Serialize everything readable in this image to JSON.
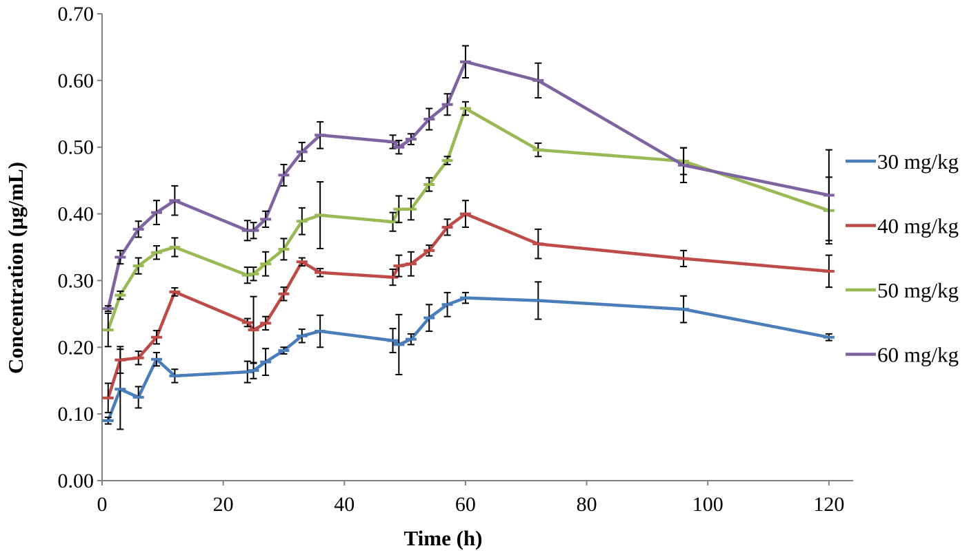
{
  "chart_data": {
    "type": "line",
    "title": "",
    "xlabel": "Time (h)",
    "ylabel": "Concentration (µg/mL)",
    "xlim": [
      0,
      124
    ],
    "ylim": [
      0,
      0.7
    ],
    "xticks": [
      0,
      20,
      40,
      60,
      80,
      100,
      120
    ],
    "yticks": [
      "0.00",
      "0.10",
      "0.20",
      "0.30",
      "0.40",
      "0.50",
      "0.60",
      "0.70"
    ],
    "grid": false,
    "legend_position": "right",
    "x": [
      1,
      3,
      6,
      9,
      12,
      24,
      25,
      27,
      30,
      33,
      36,
      48,
      49,
      51,
      54,
      57,
      60,
      72,
      96,
      120
    ],
    "series": [
      {
        "name": "30 mg/kg",
        "color": "#4a7ebb",
        "values": [
          0.09,
          0.137,
          0.125,
          0.182,
          0.157,
          0.163,
          0.165,
          0.178,
          0.195,
          0.217,
          0.224,
          0.21,
          0.204,
          0.212,
          0.244,
          0.264,
          0.274,
          0.27,
          0.257,
          0.215
        ],
        "errors": [
          0.005,
          0.06,
          0.016,
          0.01,
          0.01,
          0.016,
          0.012,
          0.02,
          0.005,
          0.01,
          0.024,
          0.018,
          0.045,
          0.008,
          0.02,
          0.018,
          0.008,
          0.028,
          0.02,
          0.005
        ]
      },
      {
        "name": "40 mg/kg",
        "color": "#be4b48",
        "values": [
          0.124,
          0.181,
          0.184,
          0.215,
          0.283,
          0.237,
          0.226,
          0.236,
          0.28,
          0.328,
          0.312,
          0.305,
          0.322,
          0.325,
          0.345,
          0.38,
          0.4,
          0.355,
          0.333,
          0.314
        ],
        "errors": [
          0.022,
          0.02,
          0.01,
          0.01,
          0.006,
          0.006,
          0.05,
          0.01,
          0.01,
          0.006,
          0.006,
          0.012,
          0.016,
          0.018,
          0.008,
          0.012,
          0.02,
          0.022,
          0.012,
          0.024
        ]
      },
      {
        "name": "50 mg/kg",
        "color": "#98b954",
        "values": [
          0.226,
          0.278,
          0.322,
          0.342,
          0.35,
          0.308,
          0.31,
          0.325,
          0.347,
          0.389,
          0.398,
          0.388,
          0.407,
          0.407,
          0.444,
          0.48,
          0.558,
          0.496,
          0.479,
          0.405
        ],
        "errors": [
          0.025,
          0.006,
          0.012,
          0.01,
          0.014,
          0.012,
          0.01,
          0.018,
          0.016,
          0.02,
          0.05,
          0.014,
          0.02,
          0.016,
          0.01,
          0.006,
          0.01,
          0.01,
          0.02,
          0.05
        ]
      },
      {
        "name": "60 mg/kg",
        "color": "#7e63a1",
        "values": [
          0.258,
          0.335,
          0.377,
          0.402,
          0.42,
          0.375,
          0.375,
          0.392,
          0.458,
          0.493,
          0.518,
          0.508,
          0.5,
          0.512,
          0.542,
          0.564,
          0.628,
          0.6,
          0.473,
          0.428
        ],
        "errors": [
          0.004,
          0.01,
          0.012,
          0.018,
          0.022,
          0.015,
          0.012,
          0.012,
          0.016,
          0.014,
          0.02,
          0.01,
          0.01,
          0.008,
          0.016,
          0.016,
          0.024,
          0.026,
          0.026,
          0.068
        ]
      }
    ]
  }
}
